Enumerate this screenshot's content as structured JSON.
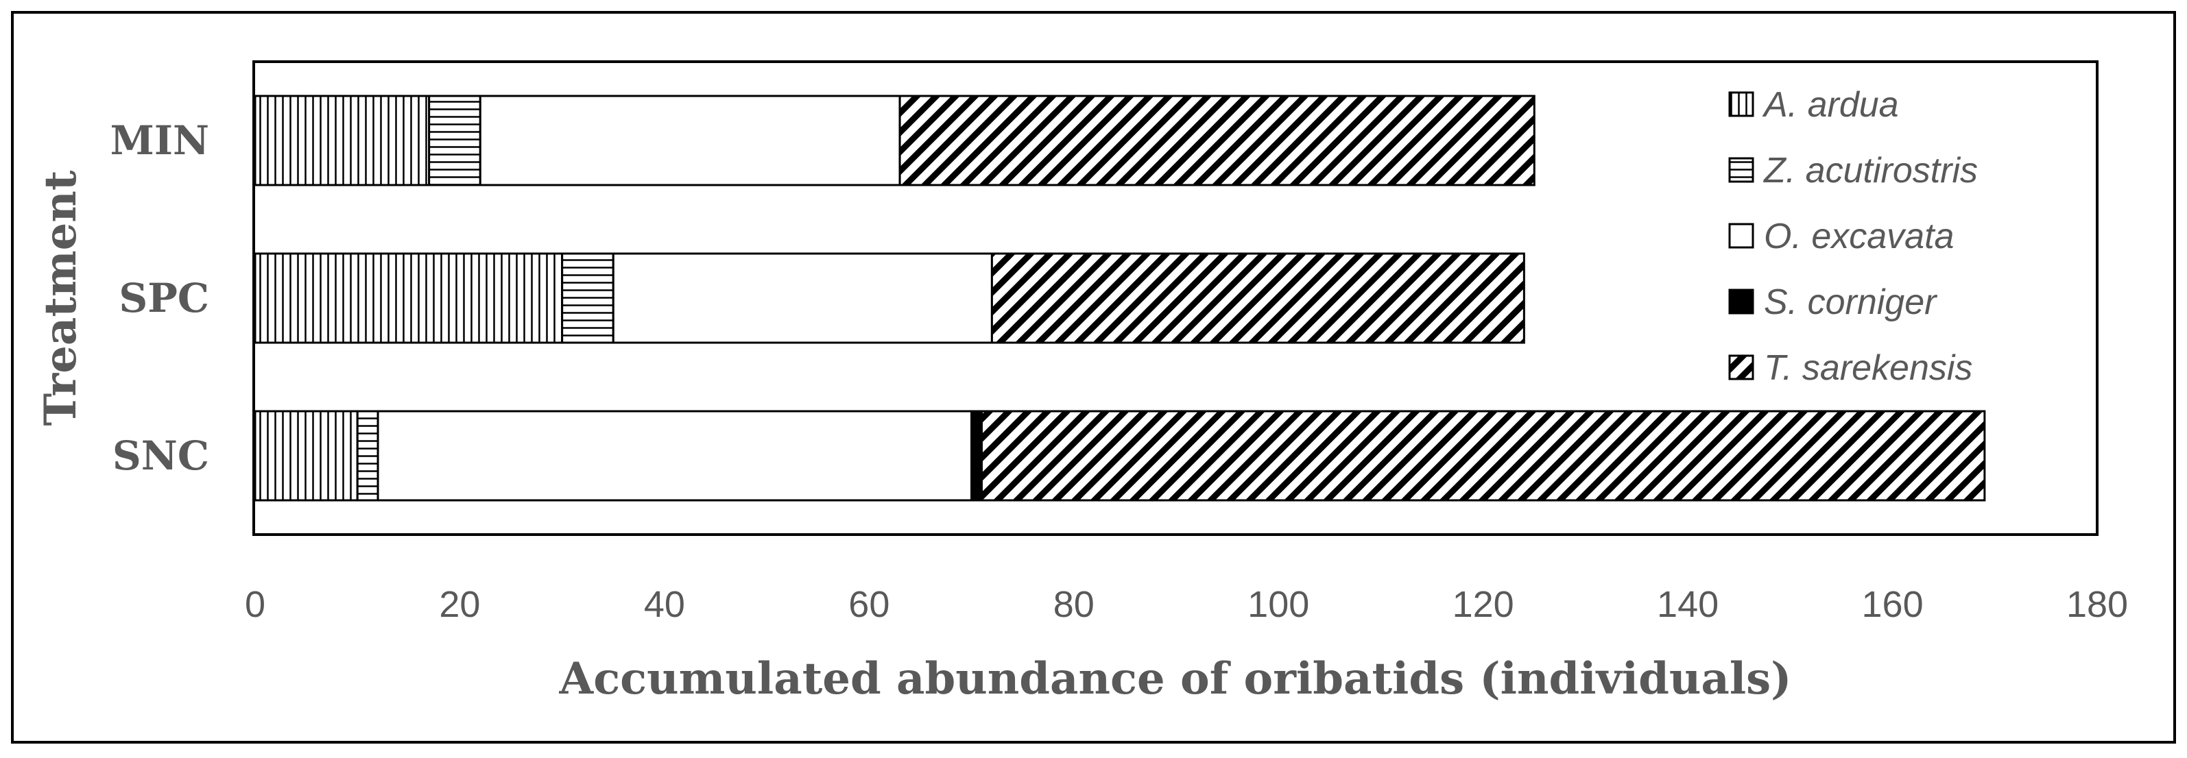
{
  "chart_data": {
    "type": "bar",
    "orientation": "horizontal",
    "stacked": true,
    "title": "",
    "xlabel": "Accumulated abundance of oribatids (individuals)",
    "ylabel": "Treatment",
    "xlim": [
      0,
      180
    ],
    "xticks": [
      "0",
      "20",
      "40",
      "60",
      "80",
      "100",
      "120",
      "140",
      "160",
      "180"
    ],
    "categories": [
      "MIN",
      "SPC",
      "SNC"
    ],
    "legend_position": "top-right",
    "grid": false,
    "series": [
      {
        "name": "A. ardua",
        "pattern": "vertical-lines",
        "values": [
          17,
          30,
          10
        ]
      },
      {
        "name": "Z. acutirostris",
        "pattern": "horizontal-lines",
        "values": [
          5,
          5,
          2
        ]
      },
      {
        "name": "O. excavata",
        "pattern": "white",
        "values": [
          41,
          37,
          58
        ]
      },
      {
        "name": "S. corniger",
        "pattern": "solid-black",
        "values": [
          0,
          0,
          1
        ]
      },
      {
        "name": "T. sarekensis",
        "pattern": "diagonal-lines",
        "values": [
          62,
          52,
          98
        ]
      }
    ]
  }
}
